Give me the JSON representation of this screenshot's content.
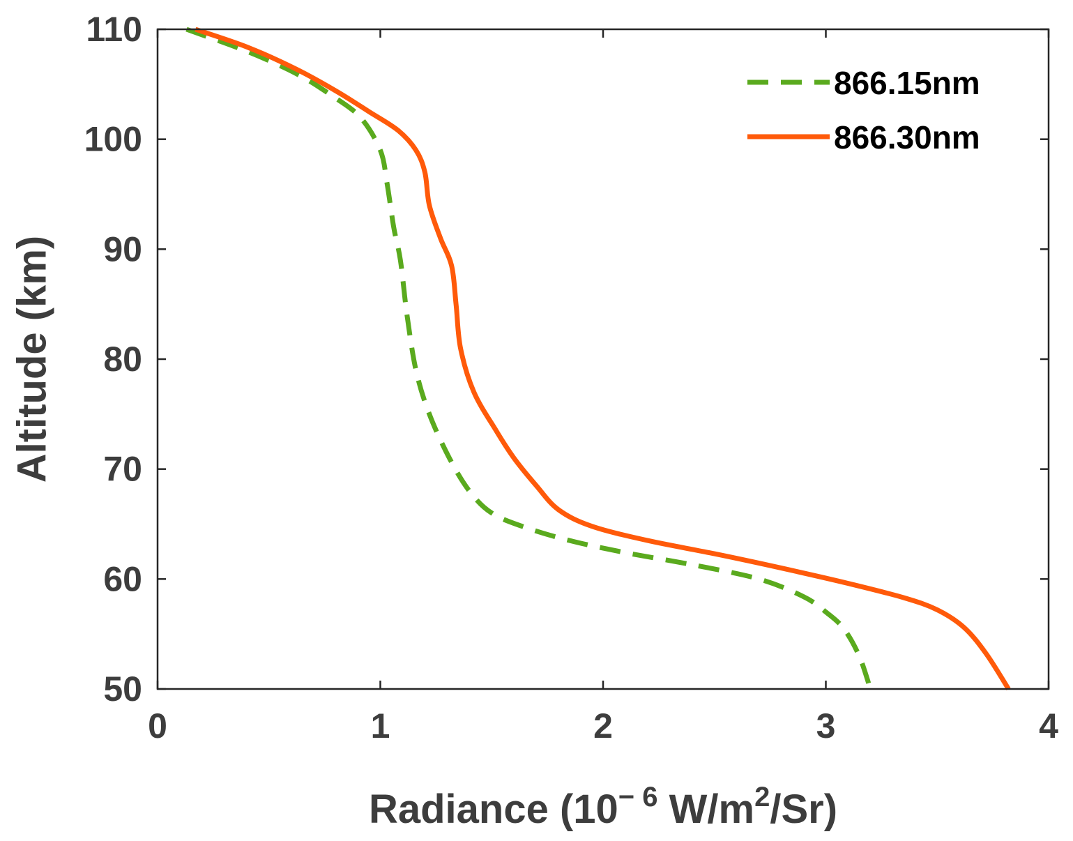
{
  "chart_data": {
    "type": "line",
    "title": "",
    "xlabel": {
      "prefix": "Radiance (10",
      "exponent": "− 6",
      "unit_mid": " W/m",
      "unit_exp": "2",
      "unit_end": "/Sr)"
    },
    "ylabel": "Altitude (km)",
    "xlim": [
      0,
      4
    ],
    "ylim": [
      50,
      110
    ],
    "xticks": [
      "0",
      "1",
      "2",
      "3",
      "4"
    ],
    "yticks": [
      "50",
      "60",
      "70",
      "80",
      "90",
      "100",
      "110"
    ],
    "legend_position": "top-right",
    "series": [
      {
        "name": "866.15nm",
        "color": "#5aaa1e",
        "style": "dashed",
        "points": [
          [
            0.13,
            110
          ],
          [
            0.4,
            108
          ],
          [
            0.62,
            106
          ],
          [
            0.78,
            104
          ],
          [
            0.91,
            102
          ],
          [
            1.0,
            99
          ],
          [
            1.03,
            96
          ],
          [
            1.06,
            92
          ],
          [
            1.09,
            89
          ],
          [
            1.12,
            84
          ],
          [
            1.16,
            79
          ],
          [
            1.22,
            75
          ],
          [
            1.31,
            71
          ],
          [
            1.4,
            68
          ],
          [
            1.5,
            66
          ],
          [
            1.65,
            64.7
          ],
          [
            1.85,
            63.5
          ],
          [
            2.1,
            62.4
          ],
          [
            2.4,
            61.3
          ],
          [
            2.7,
            60
          ],
          [
            2.9,
            58.4
          ],
          [
            3.0,
            57
          ],
          [
            3.08,
            55.5
          ],
          [
            3.15,
            53
          ],
          [
            3.2,
            50
          ]
        ]
      },
      {
        "name": "866.30nm",
        "color": "#ff5a0a",
        "style": "solid",
        "points": [
          [
            0.17,
            110
          ],
          [
            0.4,
            108.4
          ],
          [
            0.62,
            106.4
          ],
          [
            0.8,
            104.4
          ],
          [
            0.95,
            102.5
          ],
          [
            1.08,
            100.8
          ],
          [
            1.16,
            99
          ],
          [
            1.2,
            97
          ],
          [
            1.22,
            94
          ],
          [
            1.27,
            91
          ],
          [
            1.32,
            88.5
          ],
          [
            1.34,
            85
          ],
          [
            1.36,
            81
          ],
          [
            1.42,
            77
          ],
          [
            1.52,
            73.5
          ],
          [
            1.6,
            71
          ],
          [
            1.7,
            68.5
          ],
          [
            1.8,
            66.3
          ],
          [
            1.95,
            64.8
          ],
          [
            2.2,
            63.5
          ],
          [
            2.5,
            62.3
          ],
          [
            2.8,
            61
          ],
          [
            3.1,
            59.6
          ],
          [
            3.35,
            58.3
          ],
          [
            3.5,
            57.2
          ],
          [
            3.62,
            55.6
          ],
          [
            3.72,
            53.2
          ],
          [
            3.82,
            50
          ]
        ]
      }
    ]
  }
}
